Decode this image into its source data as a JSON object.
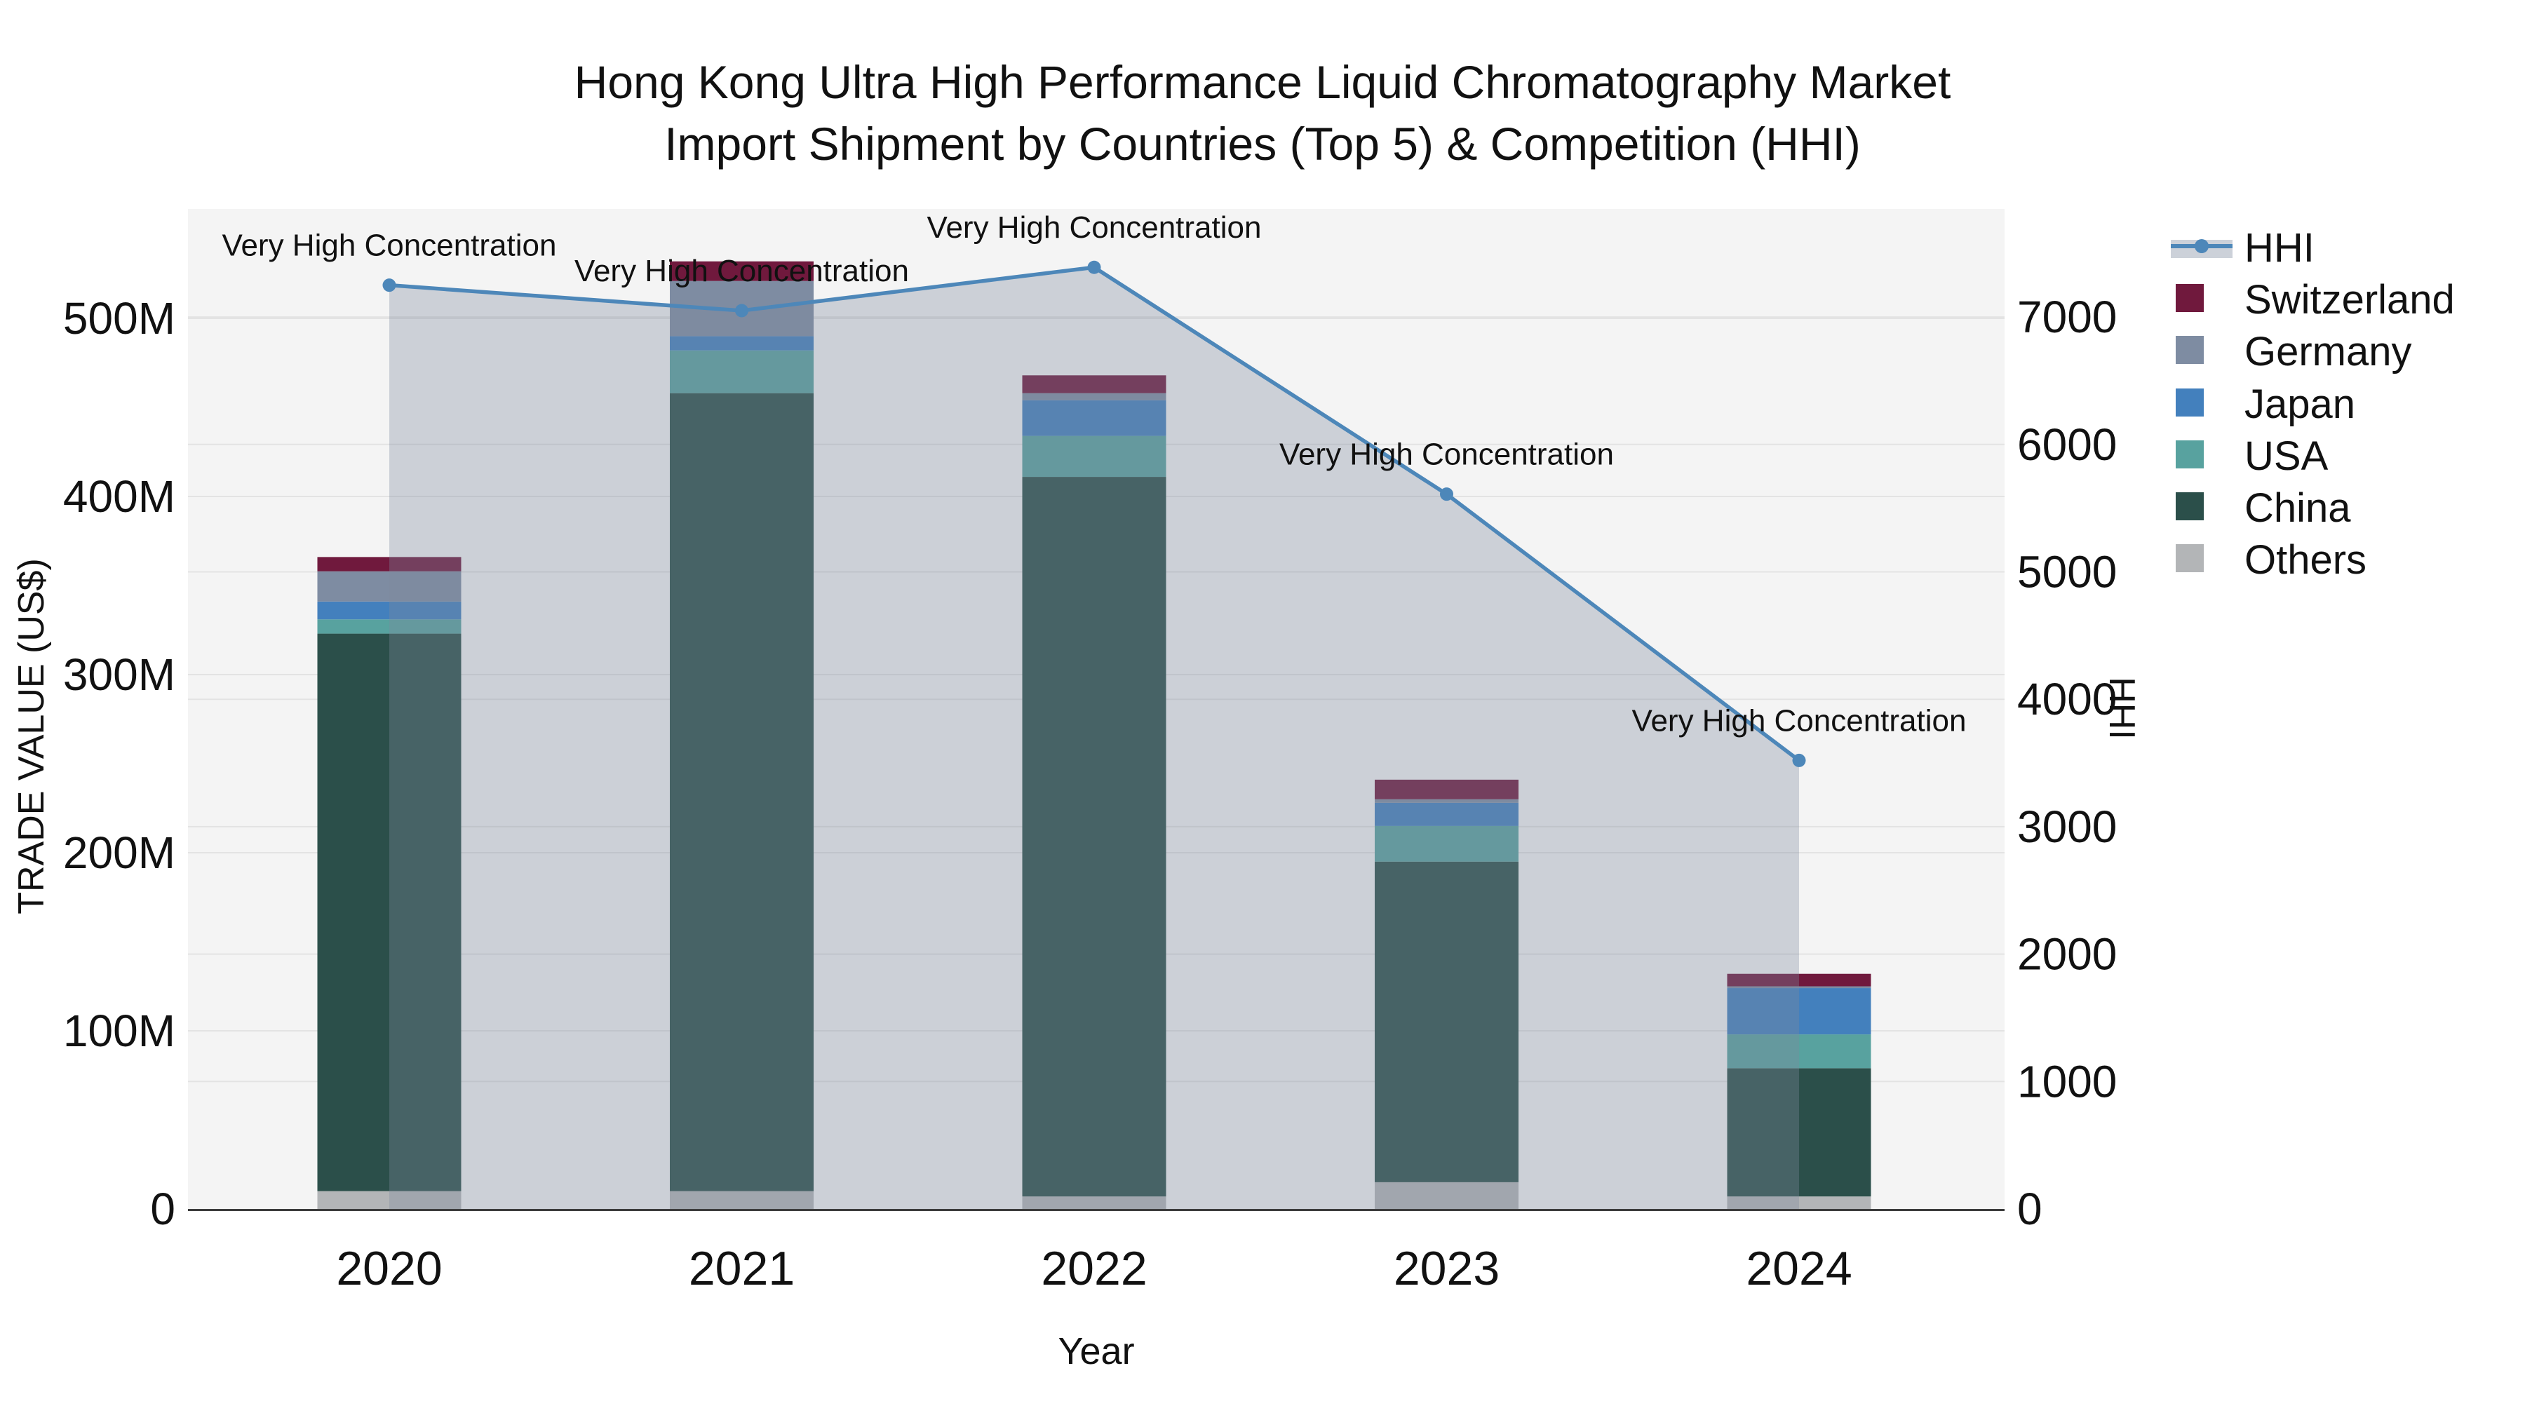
{
  "figure": {
    "title_line1": "Hong Kong Ultra High Performance Liquid Chromatography Market",
    "title_line2": "Import Shipment by Countries (Top 5) & Competition (HHI)"
  },
  "chart_data": {
    "type": "bar+line",
    "title": "Hong Kong Ultra High Performance Liquid Chromatography Market Import Shipment by Countries (Top 5) & Competition (HHI)",
    "xlabel": "Year",
    "ylabel_left": "TRADE VALUE (US$)",
    "ylabel_right": "HHI",
    "values_unit": "million US$",
    "categories": [
      "2020",
      "2021",
      "2022",
      "2023",
      "2024"
    ],
    "stack_order_bottom_to_top": [
      "Others",
      "China",
      "USA",
      "Japan",
      "Germany",
      "Switzerland"
    ],
    "series": [
      {
        "name": "Others",
        "color": "#b3b5b7",
        "values": [
          10,
          10,
          7,
          15,
          7
        ]
      },
      {
        "name": "China",
        "color": "#2b4f4a",
        "values": [
          313,
          448,
          404,
          180,
          72
        ]
      },
      {
        "name": "USA",
        "color": "#58a29f",
        "values": [
          8,
          24,
          23,
          20,
          19
        ]
      },
      {
        "name": "Japan",
        "color": "#4380bd",
        "values": [
          10,
          8,
          20,
          13,
          26
        ]
      },
      {
        "name": "Germany",
        "color": "#7e8ca2",
        "values": [
          17,
          31,
          4,
          2,
          1
        ]
      },
      {
        "name": "Switzerland",
        "color": "#70193d",
        "values": [
          8,
          11,
          10,
          11,
          7
        ]
      }
    ],
    "bar_totals": [
      366,
      532,
      468,
      241,
      132
    ],
    "line_series": {
      "name": "HHI",
      "color": "#4d87b9",
      "area_fill_color": "rgba(126,138,158,0.34)",
      "values": [
        7250,
        7050,
        7390,
        5610,
        3520
      ]
    },
    "annotations": [
      {
        "year": "2020",
        "text": "Very High Concentration"
      },
      {
        "year": "2021",
        "text": "Very High Concentration"
      },
      {
        "year": "2022",
        "text": "Very High Concentration"
      },
      {
        "year": "2023",
        "text": "Very High Concentration"
      },
      {
        "year": "2024",
        "text": "Very High Concentration"
      }
    ],
    "y_left": {
      "ticks": [
        "0",
        "100M",
        "200M",
        "300M",
        "400M",
        "500M"
      ],
      "tick_values": [
        0,
        100,
        200,
        300,
        400,
        500
      ],
      "range": [
        0,
        562
      ]
    },
    "y_right": {
      "ticks": [
        "0",
        "1000",
        "2000",
        "3000",
        "4000",
        "5000",
        "6000",
        "7000"
      ],
      "tick_values": [
        0,
        1000,
        2000,
        3000,
        4000,
        5000,
        6000,
        7000
      ],
      "range": [
        0,
        7880
      ]
    },
    "legend": {
      "position": "right",
      "entries": [
        "HHI",
        "Switzerland",
        "Germany",
        "Japan",
        "USA",
        "China",
        "Others"
      ]
    },
    "grid": true,
    "colors": {
      "plot_background": "#f4f4f4",
      "gridline": "#e3e3e3",
      "axis_line": "#3c3c3c",
      "text": "#111111",
      "hhi_legend_band": "#ccd1d9"
    }
  }
}
